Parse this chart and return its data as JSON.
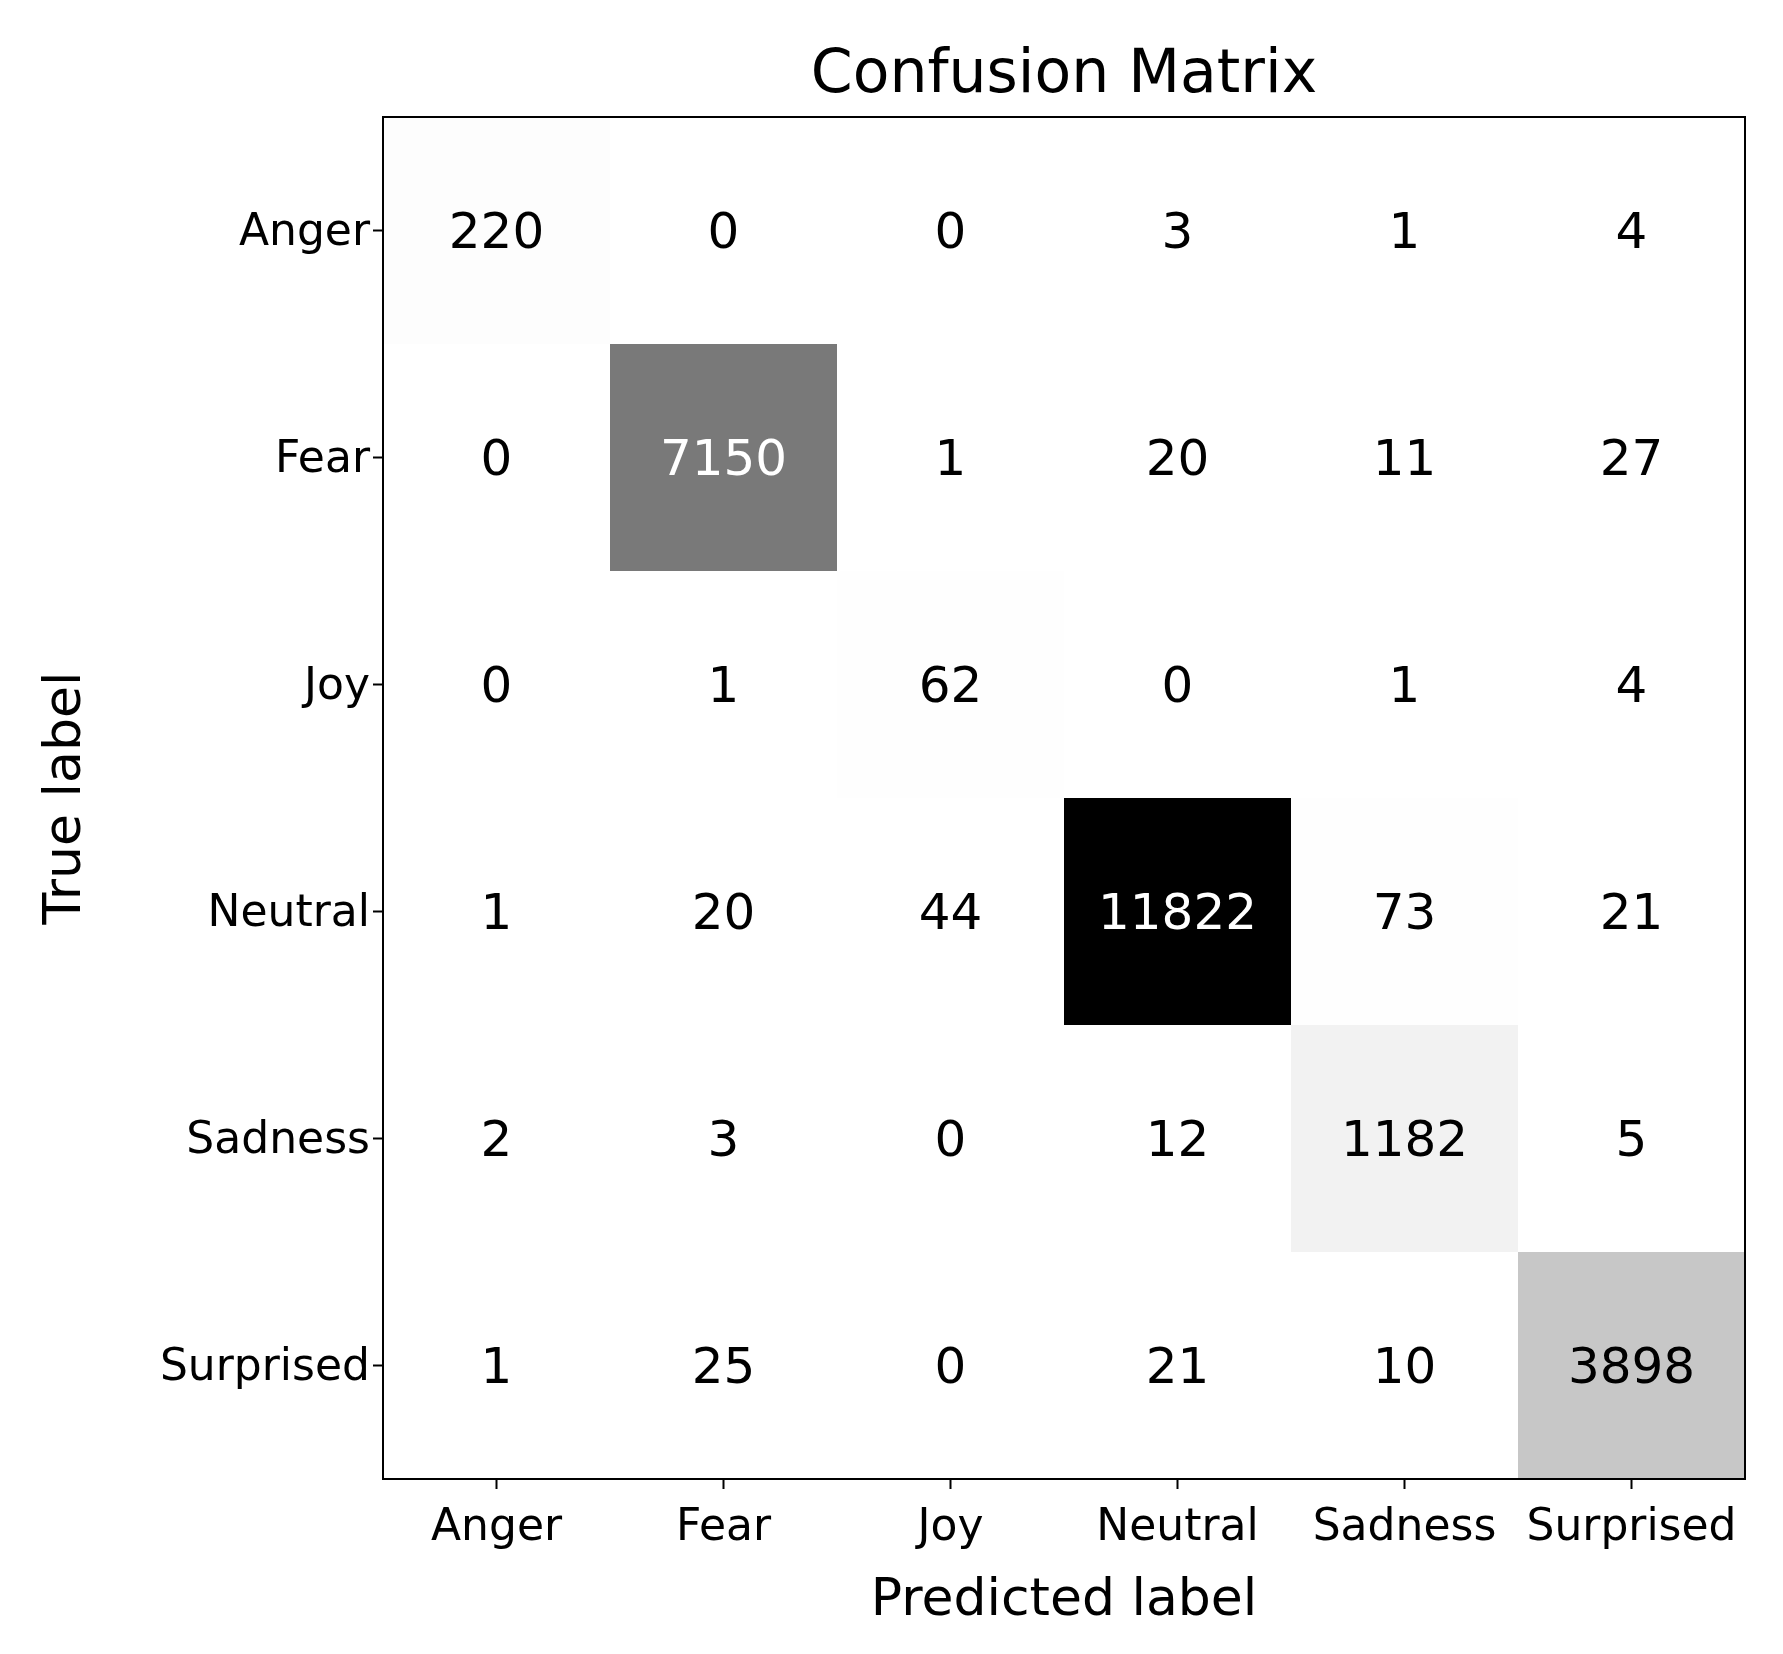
{
  "chart_data": {
    "type": "heatmap",
    "title": "Confusion Matrix",
    "xlabel": "Predicted label",
    "ylabel": "True label",
    "categories": [
      "Anger",
      "Fear",
      "Joy",
      "Neutral",
      "Sadness",
      "Surprised"
    ],
    "y_categories": [
      "Anger",
      "Fear",
      "Joy",
      "Neutral",
      "Sadness",
      "Surprised"
    ],
    "cells": [
      [
        220,
        0,
        0,
        3,
        1,
        4
      ],
      [
        0,
        7150,
        1,
        20,
        11,
        27
      ],
      [
        0,
        1,
        62,
        0,
        1,
        4
      ],
      [
        1,
        20,
        44,
        11822,
        73,
        21
      ],
      [
        2,
        3,
        0,
        12,
        1182,
        5
      ],
      [
        1,
        25,
        0,
        21,
        10,
        3898
      ]
    ],
    "data_labels": true
  }
}
